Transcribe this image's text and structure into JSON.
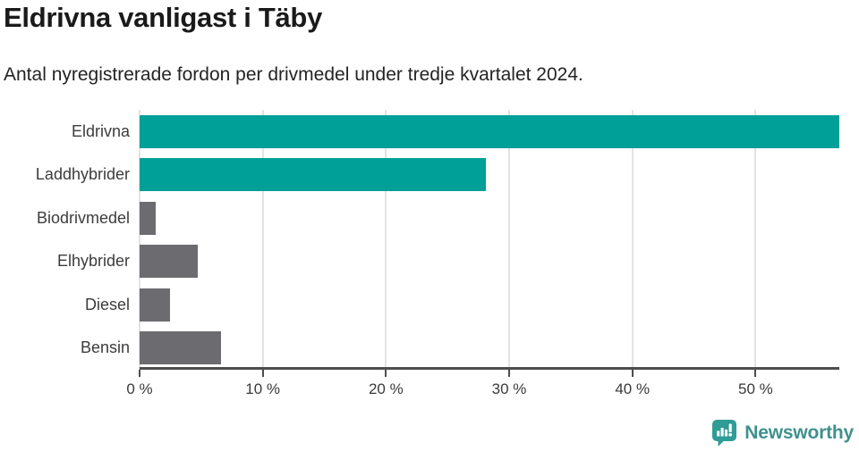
{
  "header": {
    "title": "Eldrivna vanligast i Täby",
    "subtitle": "Antal nyregistrerade fordon per drivmedel under tredje kvartalet 2024."
  },
  "chart_data": {
    "type": "bar",
    "orientation": "horizontal",
    "title": "Eldrivna vanligast i Täby",
    "subtitle": "Antal nyregistrerade fordon per drivmedel under tredje kvartalet 2024.",
    "categories": [
      "Eldrivna",
      "Laddhybrider",
      "Biodrivmedel",
      "Elhybrider",
      "Diesel",
      "Bensin"
    ],
    "values": [
      56.8,
      28.1,
      1.3,
      4.7,
      2.5,
      6.6
    ],
    "unit": "%",
    "xlim": [
      0,
      56.8
    ],
    "x_tick_values": [
      0,
      10,
      20,
      30,
      40,
      50
    ],
    "x_tick_labels": [
      "0 %",
      "10 %",
      "20 %",
      "30 %",
      "40 %",
      "50 %"
    ],
    "grid": true,
    "legend": "none",
    "bar_colors": [
      "#00a099",
      "#00a099",
      "#6b6b70",
      "#6b6b70",
      "#6b6b70",
      "#6b6b70"
    ],
    "highlight_color": "#00a099",
    "default_color": "#6b6b70",
    "gridline_color": "#e3e3e3",
    "axis_color": "#4d4d4d"
  },
  "footer": {
    "brand_name": "Newsworthy",
    "brand_color": "#3f918d",
    "logo_icon": "newsworthy-speech-bubble-chart-icon",
    "logo_icon_color": "#2f9c96"
  }
}
